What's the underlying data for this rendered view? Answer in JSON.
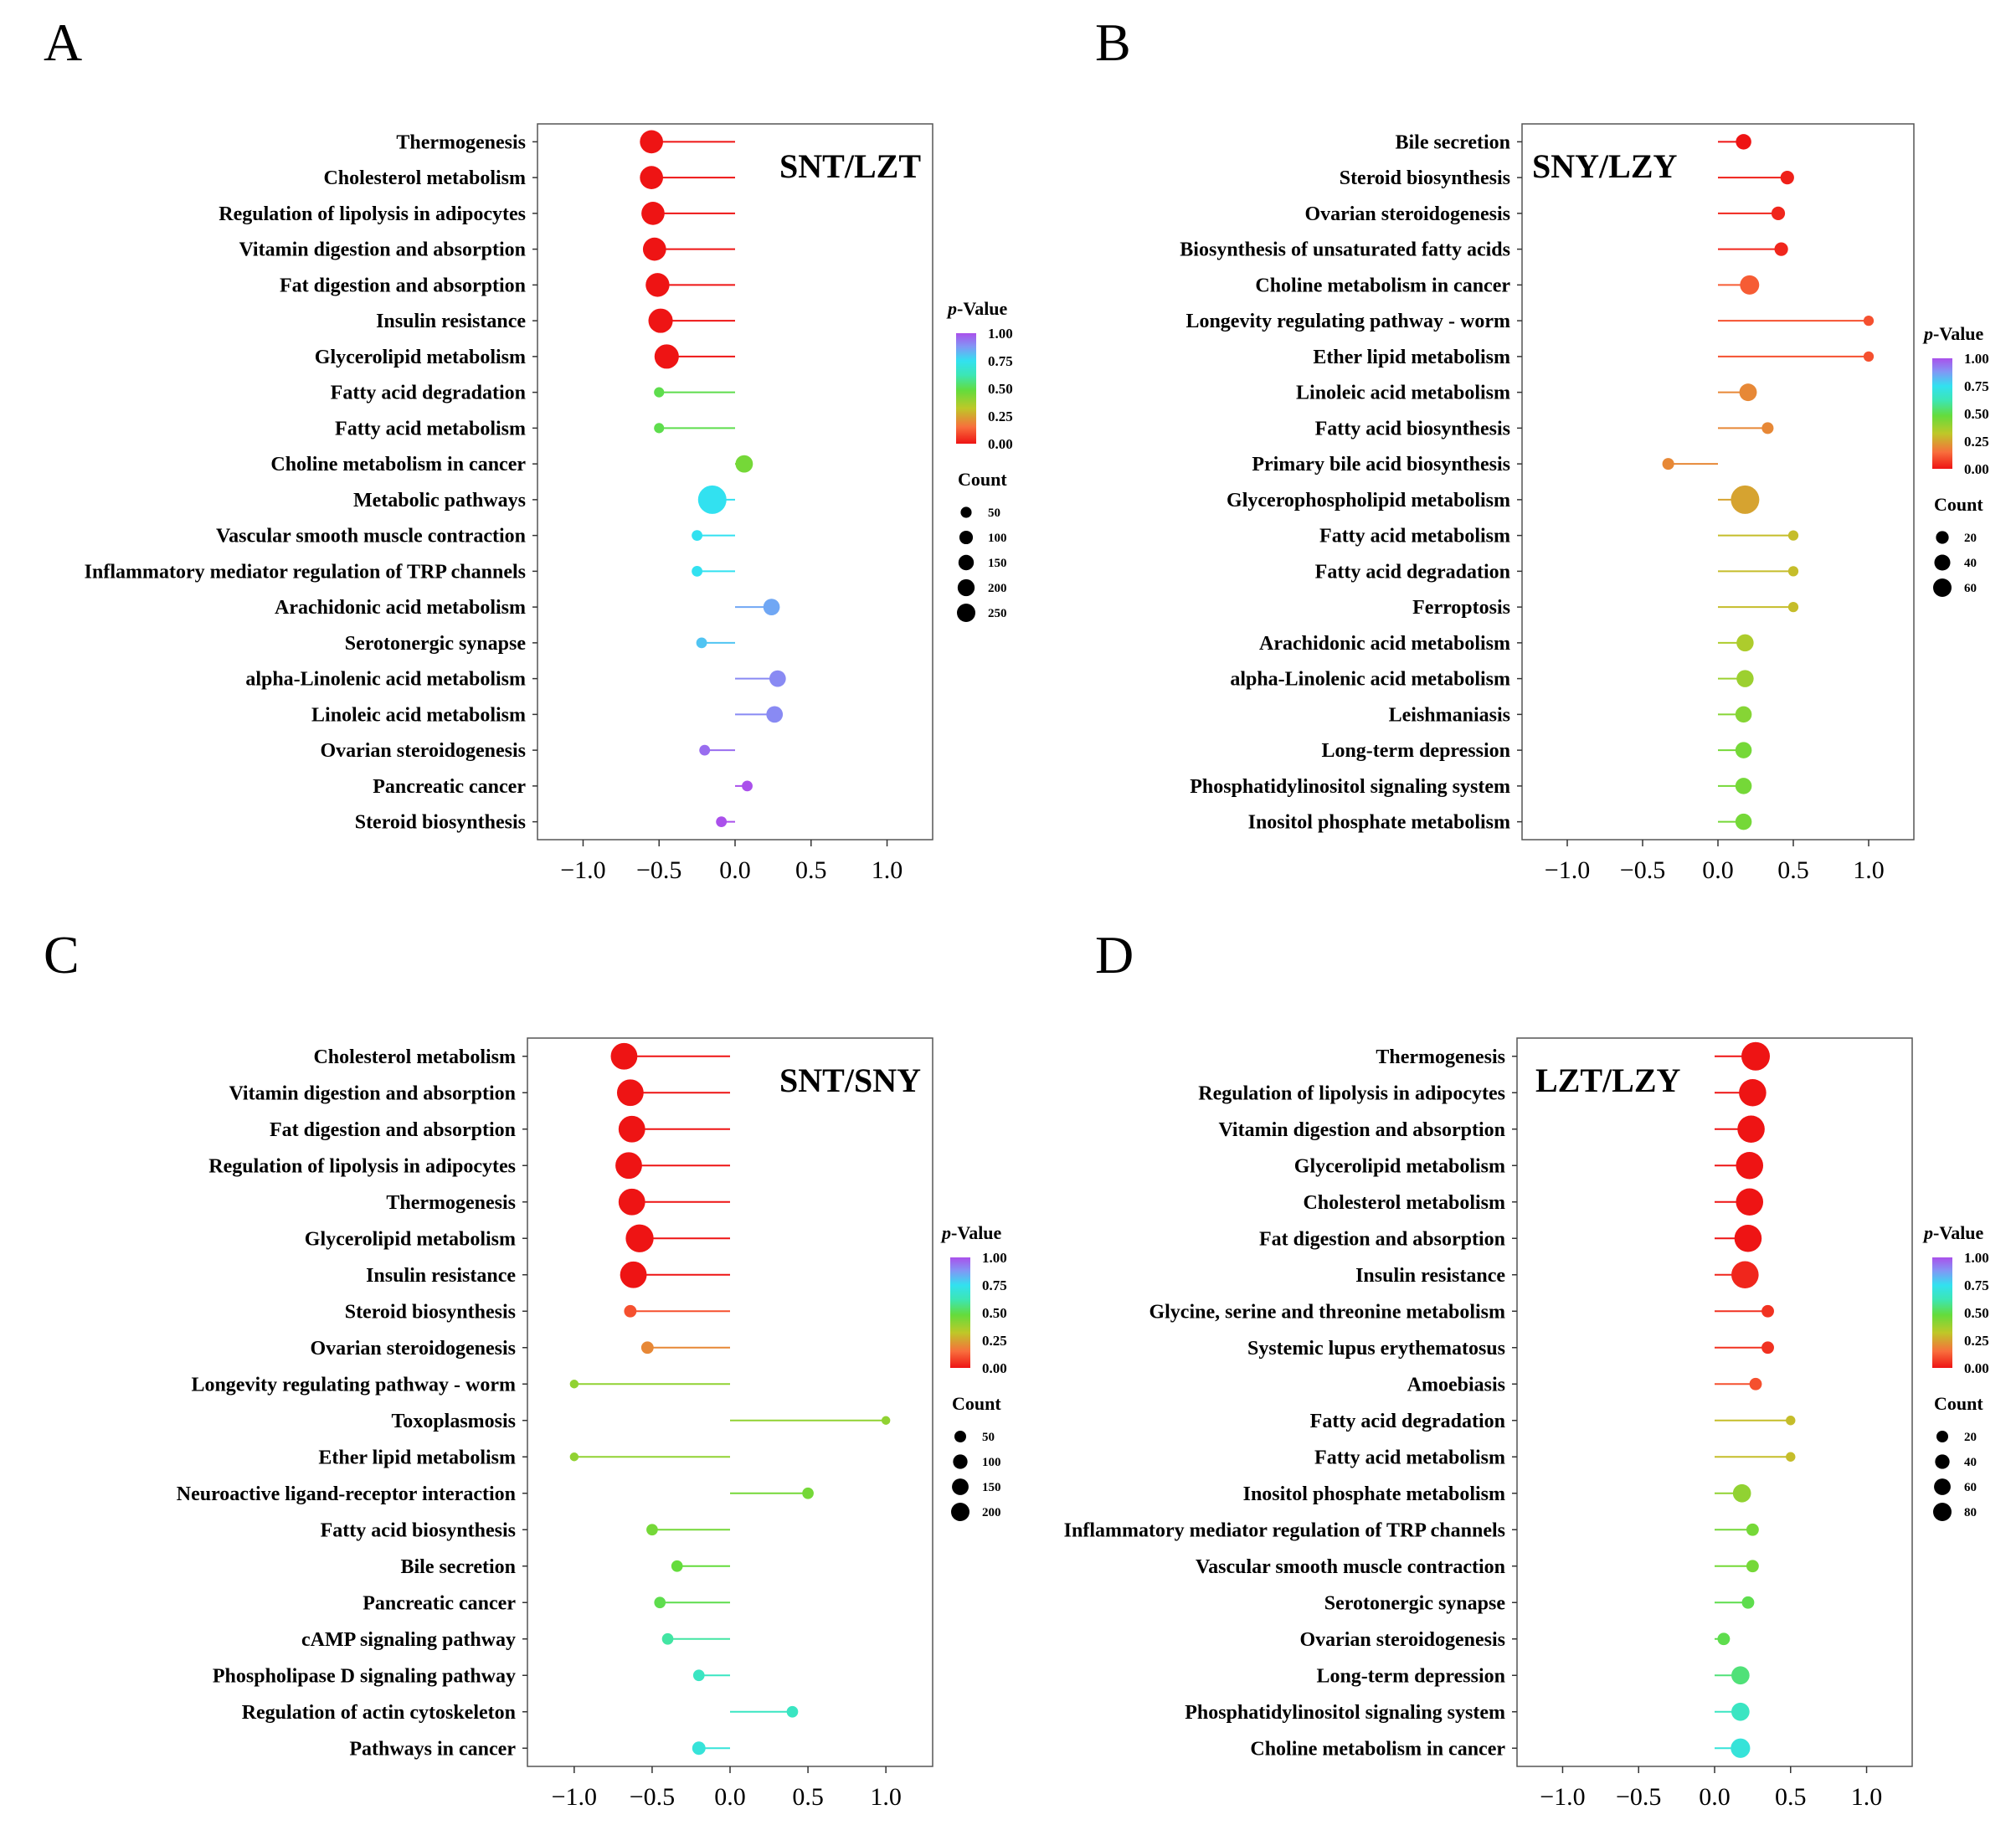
{
  "panels": {
    "A": {
      "label": "A"
    },
    "B": {
      "label": "B"
    },
    "C": {
      "label": "C"
    },
    "D": {
      "label": "D"
    }
  },
  "legend_text": {
    "pvalue_p": "p",
    "pvalue_rest": "-Value",
    "count_title": "Count"
  },
  "colors": {
    "axis": "#333333",
    "frame": "#555555"
  },
  "chart_data": [
    {
      "type": "lollipop",
      "panel": "A",
      "title": "SNT/LZT",
      "xlim": [
        -1.3,
        1.3
      ],
      "xticks": [
        -1.0,
        -0.5,
        0.0,
        0.5,
        1.0
      ],
      "xtick_labels": [
        "−1.0",
        "−0.5",
        "0.0",
        "0.5",
        "1.0"
      ],
      "pvalue_ticks": [
        "1.00",
        "0.75",
        "0.50",
        "0.25",
        "0.00"
      ],
      "count_legend": [
        50,
        100,
        150,
        200,
        250
      ],
      "count_max": 250,
      "rows": [
        {
          "name": "Thermogenesis",
          "x": -0.55,
          "p": 0.0,
          "count": 150
        },
        {
          "name": "Cholesterol metabolism",
          "x": -0.55,
          "p": 0.0,
          "count": 150
        },
        {
          "name": "Regulation of lipolysis in adipocytes",
          "x": -0.54,
          "p": 0.0,
          "count": 150
        },
        {
          "name": "Vitamin digestion and absorption",
          "x": -0.53,
          "p": 0.0,
          "count": 150
        },
        {
          "name": "Fat digestion and absorption",
          "x": -0.51,
          "p": 0.0,
          "count": 160
        },
        {
          "name": "Insulin resistance",
          "x": -0.49,
          "p": 0.0,
          "count": 170
        },
        {
          "name": "Glycerolipid metabolism",
          "x": -0.45,
          "p": 0.0,
          "count": 170
        },
        {
          "name": "Fatty acid degradation",
          "x": -0.5,
          "p": 0.5,
          "count": 12
        },
        {
          "name": "Fatty acid metabolism",
          "x": -0.5,
          "p": 0.5,
          "count": 12
        },
        {
          "name": "Choline metabolism in cancer",
          "x": 0.06,
          "p": 0.45,
          "count": 70
        },
        {
          "name": "Metabolic pathways",
          "x": -0.15,
          "p": 0.75,
          "count": 250
        },
        {
          "name": "Vascular smooth muscle contraction",
          "x": -0.25,
          "p": 0.75,
          "count": 15
        },
        {
          "name": "Inflammatory mediator regulation of TRP channels",
          "x": -0.25,
          "p": 0.75,
          "count": 15
        },
        {
          "name": "Arachidonic acid metabolism",
          "x": 0.24,
          "p": 0.85,
          "count": 60
        },
        {
          "name": "Serotonergic synapse",
          "x": -0.22,
          "p": 0.8,
          "count": 15
        },
        {
          "name": "alpha-Linolenic acid metabolism",
          "x": 0.28,
          "p": 0.9,
          "count": 60
        },
        {
          "name": "Linoleic acid metabolism",
          "x": 0.26,
          "p": 0.9,
          "count": 60
        },
        {
          "name": "Ovarian steroidogenesis",
          "x": -0.2,
          "p": 0.95,
          "count": 15
        },
        {
          "name": "Pancreatic cancer",
          "x": 0.08,
          "p": 1.0,
          "count": 15
        },
        {
          "name": "Steroid biosynthesis",
          "x": -0.09,
          "p": 1.0,
          "count": 15
        }
      ]
    },
    {
      "type": "lollipop",
      "panel": "B",
      "title": "SNY/LZY",
      "xlim": [
        -1.3,
        1.3
      ],
      "xticks": [
        -1.0,
        -0.5,
        0.0,
        0.5,
        1.0
      ],
      "xtick_labels": [
        "−1.0",
        "−0.5",
        "0.0",
        "0.5",
        "1.0"
      ],
      "pvalue_ticks": [
        "1.00",
        "0.75",
        "0.50",
        "0.25",
        "0.00"
      ],
      "count_legend": [
        20,
        40,
        60
      ],
      "count_max": 60,
      "rows": [
        {
          "name": "Bile secretion",
          "x": 0.17,
          "p": 0.0,
          "count": 12
        },
        {
          "name": "Steroid biosynthesis",
          "x": 0.46,
          "p": 0.02,
          "count": 8
        },
        {
          "name": "Ovarian steroidogenesis",
          "x": 0.4,
          "p": 0.03,
          "count": 8
        },
        {
          "name": "Biosynthesis of unsaturated fatty acids",
          "x": 0.42,
          "p": 0.03,
          "count": 8
        },
        {
          "name": "Choline metabolism in cancer",
          "x": 0.21,
          "p": 0.12,
          "count": 22
        },
        {
          "name": "Longevity regulating pathway - worm",
          "x": 1.0,
          "p": 0.1,
          "count": 3
        },
        {
          "name": "Ether lipid metabolism",
          "x": 1.0,
          "p": 0.1,
          "count": 3
        },
        {
          "name": "Linoleic acid metabolism",
          "x": 0.2,
          "p": 0.2,
          "count": 17
        },
        {
          "name": "Fatty acid biosynthesis",
          "x": 0.33,
          "p": 0.2,
          "count": 5
        },
        {
          "name": "Primary bile acid biosynthesis",
          "x": -0.33,
          "p": 0.2,
          "count": 5
        },
        {
          "name": "Glycerophospholipid metabolism",
          "x": 0.18,
          "p": 0.25,
          "count": 60
        },
        {
          "name": "Fatty acid metabolism",
          "x": 0.5,
          "p": 0.3,
          "count": 3
        },
        {
          "name": "Fatty acid degradation",
          "x": 0.5,
          "p": 0.3,
          "count": 3
        },
        {
          "name": "Ferroptosis",
          "x": 0.5,
          "p": 0.3,
          "count": 3
        },
        {
          "name": "Arachidonic acid metabolism",
          "x": 0.18,
          "p": 0.35,
          "count": 16
        },
        {
          "name": "alpha-Linolenic acid metabolism",
          "x": 0.18,
          "p": 0.38,
          "count": 16
        },
        {
          "name": "Leishmaniasis",
          "x": 0.17,
          "p": 0.42,
          "count": 14
        },
        {
          "name": "Long-term depression",
          "x": 0.17,
          "p": 0.45,
          "count": 14
        },
        {
          "name": "Phosphatidylinositol signaling system",
          "x": 0.17,
          "p": 0.45,
          "count": 14
        },
        {
          "name": "Inositol phosphate metabolism",
          "x": 0.17,
          "p": 0.45,
          "count": 14
        }
      ]
    },
    {
      "type": "lollipop",
      "panel": "C",
      "title": "SNT/SNY",
      "xlim": [
        -1.3,
        1.3
      ],
      "xticks": [
        -1.0,
        -0.5,
        0.0,
        0.5,
        1.0
      ],
      "xtick_labels": [
        "−1.0",
        "−0.5",
        "0.0",
        "0.5",
        "1.0"
      ],
      "pvalue_ticks": [
        "1.00",
        "0.75",
        "0.50",
        "0.25",
        "0.00"
      ],
      "count_legend": [
        50,
        100,
        150,
        200
      ],
      "count_max": 200,
      "rows": [
        {
          "name": "Cholesterol metabolism",
          "x": -0.68,
          "p": 0.0,
          "count": 170
        },
        {
          "name": "Vitamin digestion and absorption",
          "x": -0.64,
          "p": 0.0,
          "count": 170
        },
        {
          "name": "Fat digestion and absorption",
          "x": -0.63,
          "p": 0.0,
          "count": 170
        },
        {
          "name": "Regulation of lipolysis in adipocytes",
          "x": -0.65,
          "p": 0.0,
          "count": 170
        },
        {
          "name": "Thermogenesis",
          "x": -0.63,
          "p": 0.0,
          "count": 170
        },
        {
          "name": "Glycerolipid metabolism",
          "x": -0.58,
          "p": 0.0,
          "count": 190
        },
        {
          "name": "Insulin resistance",
          "x": -0.62,
          "p": 0.0,
          "count": 170
        },
        {
          "name": "Steroid biosynthesis",
          "x": -0.64,
          "p": 0.1,
          "count": 20
        },
        {
          "name": "Ovarian steroidogenesis",
          "x": -0.53,
          "p": 0.2,
          "count": 20
        },
        {
          "name": "Longevity regulating pathway - worm",
          "x": -1.0,
          "p": 0.4,
          "count": 5
        },
        {
          "name": "Toxoplasmosis",
          "x": 1.0,
          "p": 0.4,
          "count": 5
        },
        {
          "name": "Ether lipid metabolism",
          "x": -1.0,
          "p": 0.4,
          "count": 5
        },
        {
          "name": "Neuroactive ligand-receptor interaction",
          "x": 0.5,
          "p": 0.45,
          "count": 15
        },
        {
          "name": "Fatty acid biosynthesis",
          "x": -0.5,
          "p": 0.45,
          "count": 15
        },
        {
          "name": "Bile secretion",
          "x": -0.34,
          "p": 0.48,
          "count": 15
        },
        {
          "name": "Pancreatic cancer",
          "x": -0.45,
          "p": 0.5,
          "count": 15
        },
        {
          "name": "cAMP signaling pathway",
          "x": -0.4,
          "p": 0.6,
          "count": 15
        },
        {
          "name": "Phospholipase D signaling pathway",
          "x": -0.2,
          "p": 0.65,
          "count": 15
        },
        {
          "name": "Regulation of actin cytoskeleton",
          "x": 0.4,
          "p": 0.65,
          "count": 15
        },
        {
          "name": "Pathways in cancer",
          "x": -0.2,
          "p": 0.7,
          "count": 25
        }
      ]
    },
    {
      "type": "lollipop",
      "panel": "D",
      "title": "LZT/LZY",
      "xlim": [
        -1.3,
        1.3
      ],
      "xticks": [
        -1.0,
        -0.5,
        0.0,
        0.5,
        1.0
      ],
      "xtick_labels": [
        "−1.0",
        "−0.5",
        "0.0",
        "0.5",
        "1.0"
      ],
      "pvalue_ticks": [
        "1.00",
        "0.75",
        "0.50",
        "0.25",
        "0.00"
      ],
      "count_legend": [
        20,
        40,
        60,
        80
      ],
      "count_max": 80,
      "rows": [
        {
          "name": "Thermogenesis",
          "x": 0.27,
          "p": 0.0,
          "count": 80
        },
        {
          "name": "Regulation of lipolysis in adipocytes",
          "x": 0.25,
          "p": 0.0,
          "count": 72
        },
        {
          "name": "Vitamin digestion and absorption",
          "x": 0.24,
          "p": 0.0,
          "count": 72
        },
        {
          "name": "Glycerolipid metabolism",
          "x": 0.23,
          "p": 0.0,
          "count": 72
        },
        {
          "name": "Cholesterol metabolism",
          "x": 0.23,
          "p": 0.0,
          "count": 72
        },
        {
          "name": "Fat digestion and absorption",
          "x": 0.22,
          "p": 0.0,
          "count": 72
        },
        {
          "name": "Insulin resistance",
          "x": 0.2,
          "p": 0.03,
          "count": 72
        },
        {
          "name": "Glycine, serine and threonine metabolism",
          "x": 0.35,
          "p": 0.05,
          "count": 8
        },
        {
          "name": "Systemic lupus erythematosus",
          "x": 0.35,
          "p": 0.05,
          "count": 8
        },
        {
          "name": "Amoebiasis",
          "x": 0.27,
          "p": 0.1,
          "count": 8
        },
        {
          "name": "Fatty acid degradation",
          "x": 0.5,
          "p": 0.3,
          "count": 3
        },
        {
          "name": "Fatty acid metabolism",
          "x": 0.5,
          "p": 0.3,
          "count": 3
        },
        {
          "name": "Inositol phosphate metabolism",
          "x": 0.18,
          "p": 0.4,
          "count": 25
        },
        {
          "name": "Inflammatory mediator regulation of TRP channels",
          "x": 0.25,
          "p": 0.45,
          "count": 8
        },
        {
          "name": "Vascular smooth muscle contraction",
          "x": 0.25,
          "p": 0.45,
          "count": 8
        },
        {
          "name": "Serotonergic synapse",
          "x": 0.22,
          "p": 0.5,
          "count": 8
        },
        {
          "name": "Ovarian steroidogenesis",
          "x": 0.06,
          "p": 0.5,
          "count": 8
        },
        {
          "name": "Long-term depression",
          "x": 0.17,
          "p": 0.55,
          "count": 25
        },
        {
          "name": "Phosphatidylinositol signaling system",
          "x": 0.17,
          "p": 0.65,
          "count": 25
        },
        {
          "name": "Choline metabolism in cancer",
          "x": 0.17,
          "p": 0.7,
          "count": 30
        }
      ]
    }
  ]
}
